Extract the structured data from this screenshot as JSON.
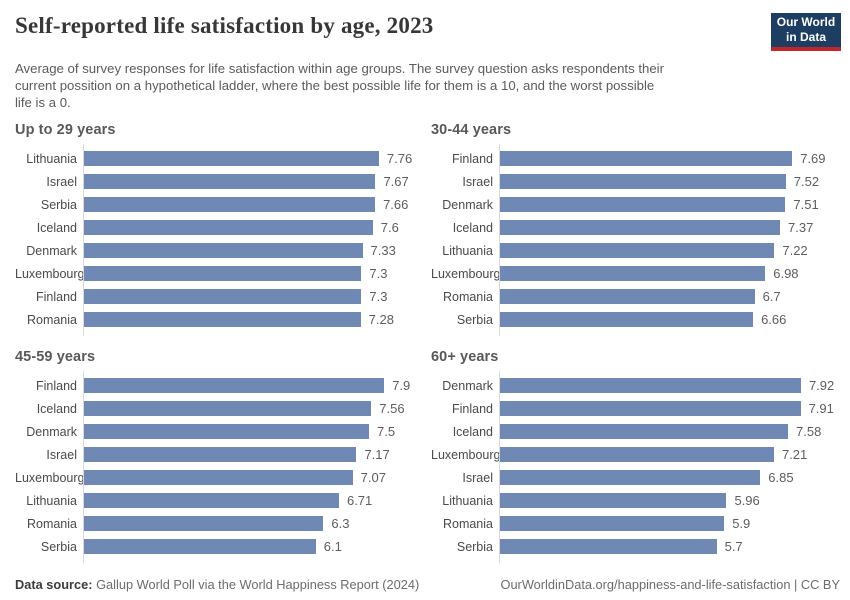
{
  "chart_data": {
    "type": "bar",
    "orientation": "horizontal",
    "title": "Self-reported life satisfaction by age, 2023",
    "subtitle_lines": [
      "Average of survey responses for life satisfaction within age groups. The survey question asks respondents their",
      "current possition on a hypothetical ladder, where the best possible life for them is a 10, and the worst possible",
      "life is a 0."
    ],
    "xlim": [
      0,
      8.2
    ],
    "grid": false,
    "legend": "none",
    "bar_color": "#7089b4",
    "panels": [
      {
        "title": "Up to 29 years",
        "categories": [
          "Lithuania",
          "Israel",
          "Serbia",
          "Iceland",
          "Denmark",
          "Luxembourg",
          "Finland",
          "Romania"
        ],
        "values": [
          7.76,
          7.67,
          7.66,
          7.6,
          7.33,
          7.3,
          7.3,
          7.28
        ],
        "value_labels": [
          "7.76",
          "7.67",
          "7.66",
          "7.6",
          "7.33",
          "7.3",
          "7.3",
          "7.28"
        ]
      },
      {
        "title": "30-44 years",
        "categories": [
          "Finland",
          "Israel",
          "Denmark",
          "Iceland",
          "Lithuania",
          "Luxembourg",
          "Romania",
          "Serbia"
        ],
        "values": [
          7.69,
          7.52,
          7.51,
          7.37,
          7.22,
          6.98,
          6.7,
          6.66
        ],
        "value_labels": [
          "7.69",
          "7.52",
          "7.51",
          "7.37",
          "7.22",
          "6.98",
          "6.7",
          "6.66"
        ]
      },
      {
        "title": "45-59 years",
        "categories": [
          "Finland",
          "Iceland",
          "Denmark",
          "Israel",
          "Luxembourg",
          "Lithuania",
          "Romania",
          "Serbia"
        ],
        "values": [
          7.9,
          7.56,
          7.5,
          7.17,
          7.07,
          6.71,
          6.3,
          6.1
        ],
        "value_labels": [
          "7.9",
          "7.56",
          "7.5",
          "7.17",
          "7.07",
          "6.71",
          "6.3",
          "6.1"
        ]
      },
      {
        "title": "60+ years",
        "categories": [
          "Denmark",
          "Finland",
          "Iceland",
          "Luxembourg",
          "Israel",
          "Lithuania",
          "Romania",
          "Serbia"
        ],
        "values": [
          7.92,
          7.91,
          7.58,
          7.21,
          6.85,
          5.96,
          5.9,
          5.7
        ],
        "value_labels": [
          "7.92",
          "7.91",
          "7.58",
          "7.21",
          "6.85",
          "5.96",
          "5.9",
          "5.7"
        ]
      }
    ]
  },
  "logo": {
    "line1": "Our World",
    "line2": "in Data",
    "bg_color": "#1d3d63",
    "accent_color": "#c0272d"
  },
  "footer": {
    "source_label": "Data source:",
    "source_text": " Gallup World Poll via the World Happiness Report (2024)",
    "attribution": "OurWorldinData.org/happiness-and-life-satisfaction | CC BY"
  }
}
